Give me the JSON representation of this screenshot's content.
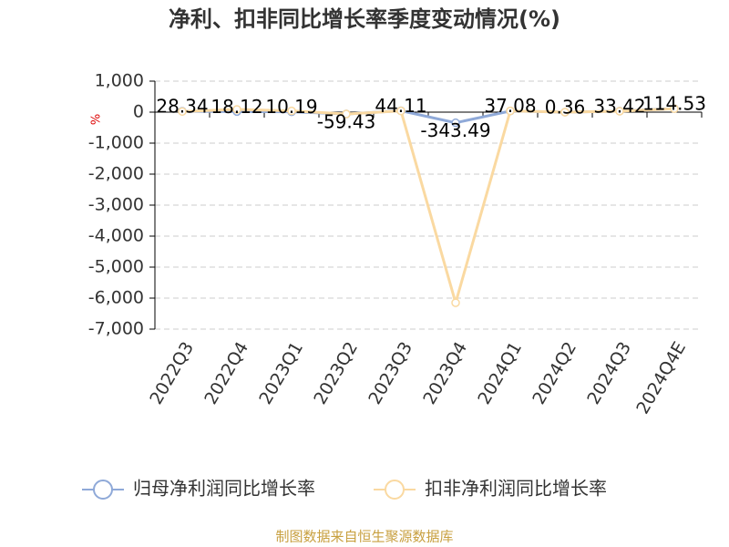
{
  "chart_data": {
    "type": "line",
    "title": "净利、扣非同比增长率季度变动情况(%)",
    "y_unit": "%",
    "categories": [
      "2022Q3",
      "2022Q4",
      "2023Q1",
      "2023Q2",
      "2023Q3",
      "2023Q4",
      "2024Q1",
      "2024Q2",
      "2024Q3",
      "2024Q4E"
    ],
    "series": [
      {
        "name": "归母净利润同比增长率",
        "color": "#8fa9d8",
        "values": [
          28.34,
          18.12,
          10.19,
          -59.43,
          44.11,
          -343.49,
          37.08,
          0.36,
          33.42,
          114.53
        ],
        "show_labels": true
      },
      {
        "name": "扣非净利润同比增长率",
        "color": "#fad9a1",
        "values": [
          20,
          90,
          40,
          -60,
          40,
          -6150,
          40,
          0,
          30,
          110
        ],
        "show_labels": false
      }
    ],
    "ylim": [
      -7000,
      1000
    ],
    "yticks": [
      {
        "value": 1000,
        "label": "1,000"
      },
      0,
      {
        "value": -1000,
        "label": "-1,000"
      },
      {
        "value": -2000,
        "label": "-2,000"
      },
      {
        "value": -3000,
        "label": "-3,000"
      },
      {
        "value": -4000,
        "label": "-4,000"
      },
      {
        "value": -5000,
        "label": "-5,000"
      },
      {
        "value": -6000,
        "label": "-6,000"
      },
      {
        "value": -7000,
        "label": "-7,000"
      }
    ],
    "grid": true,
    "source": "制图数据来自恒生聚源数据库"
  }
}
